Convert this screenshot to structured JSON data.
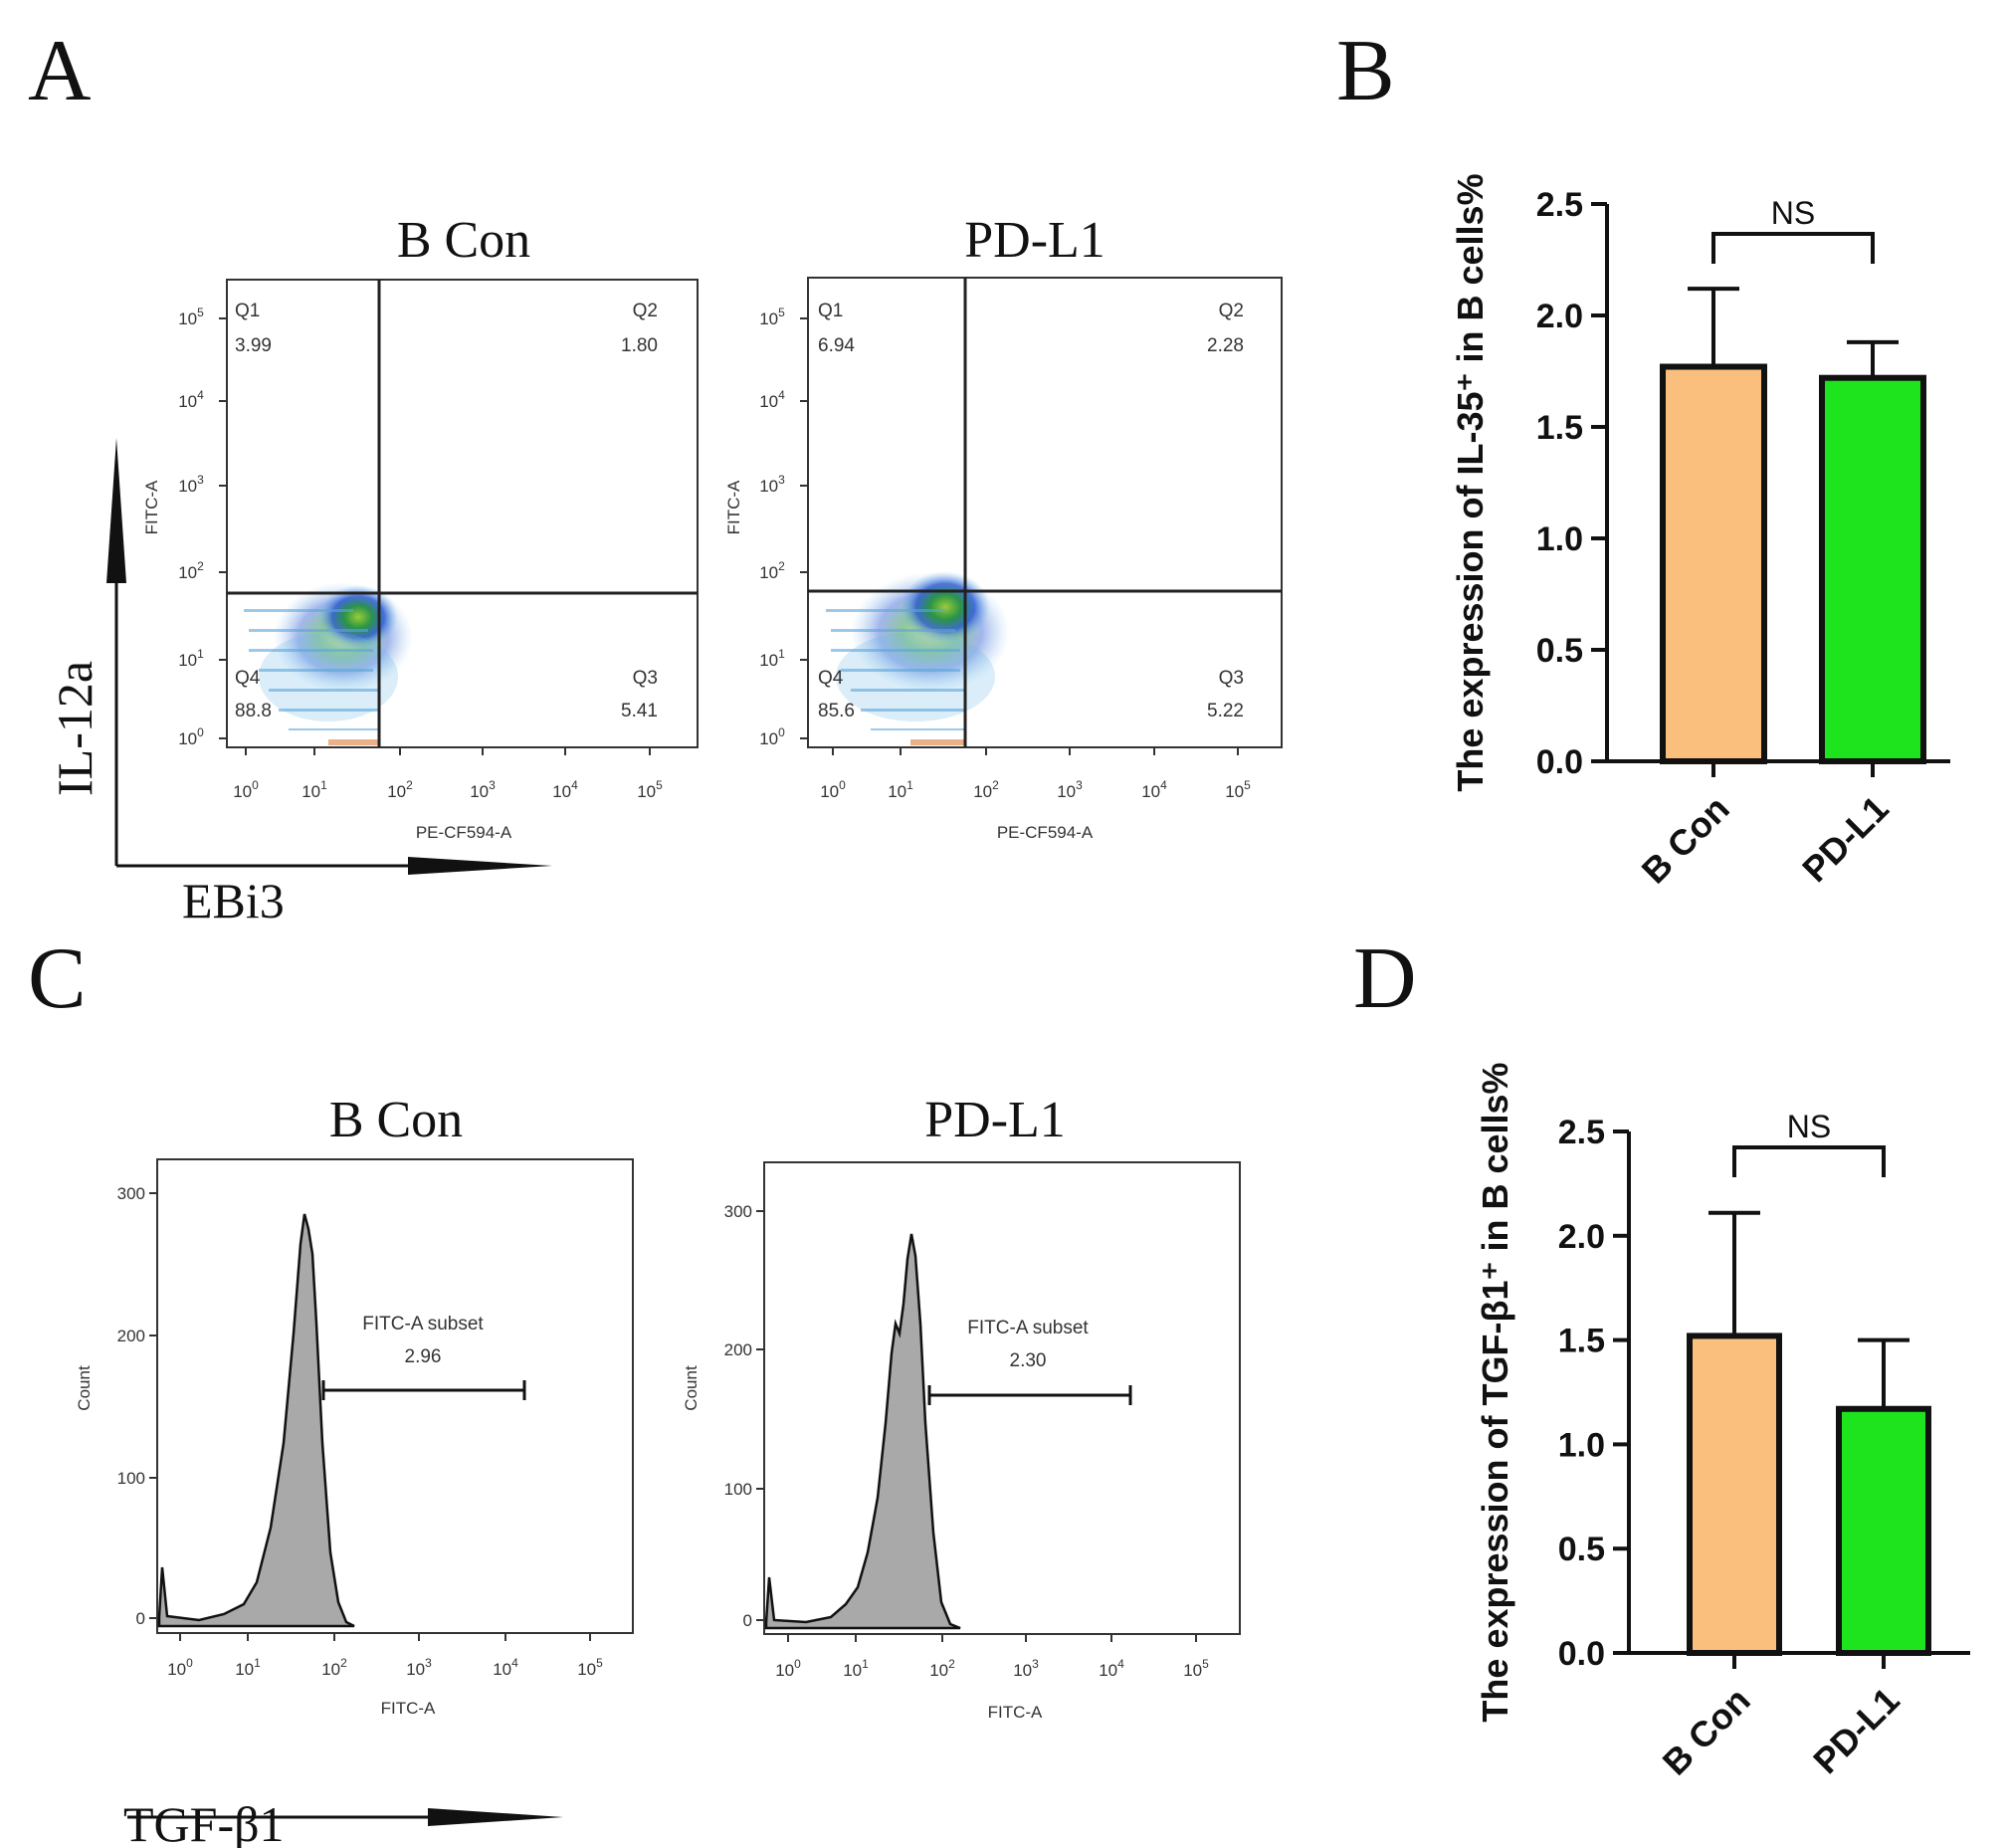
{
  "panels": {
    "A": {
      "letter": "A",
      "y_marker": "IL-12a",
      "x_marker": "EBi3",
      "plots": [
        {
          "title": "B Con",
          "x_axis_label": "PE-CF594-A",
          "y_axis_label": "FITC-A",
          "quadrants": [
            {
              "name": "Q1",
              "value": "3.99"
            },
            {
              "name": "Q2",
              "value": "1.80"
            },
            {
              "name": "Q3",
              "value": "5.41"
            },
            {
              "name": "Q4",
              "value": "88.8"
            }
          ]
        },
        {
          "title": "PD-L1",
          "x_axis_label": "PE-CF594-A",
          "y_axis_label": "FITC-A",
          "quadrants": [
            {
              "name": "Q1",
              "value": "6.94"
            },
            {
              "name": "Q2",
              "value": "2.28"
            },
            {
              "name": "Q3",
              "value": "5.22"
            },
            {
              "name": "Q4",
              "value": "85.6"
            }
          ]
        }
      ],
      "decade_ticks": [
        "0",
        "1",
        "2",
        "3",
        "4",
        "5"
      ],
      "tick_base": "10"
    },
    "B": {
      "letter": "B",
      "significance": "NS"
    },
    "C": {
      "letter": "C",
      "x_marker": "TGF-β1",
      "plots": [
        {
          "title": "B Con",
          "x_axis_label": "FITC-A",
          "y_axis_label": "Count",
          "gate_label": "FITC-A subset",
          "gate_value": "2.96",
          "y_ticks": [
            "0",
            "100",
            "200",
            "300"
          ]
        },
        {
          "title": "PD-L1",
          "x_axis_label": "FITC-A",
          "y_axis_label": "Count",
          "gate_label": "FITC-A subset",
          "gate_value": "2.30",
          "y_ticks": [
            "0",
            "100",
            "200",
            "300"
          ]
        }
      ]
    },
    "D": {
      "letter": "D",
      "significance": "NS"
    }
  },
  "colors": {
    "b_con": "#fbbf7d",
    "pd_l1": "#1ee41e",
    "axis": "#111111",
    "histogram_fill": "#a9a9a9"
  },
  "chart_data": [
    {
      "type": "bar",
      "panel": "B",
      "categories": [
        "B Con",
        "PD-L1"
      ],
      "values": [
        1.77,
        1.72
      ],
      "error": [
        0.35,
        0.16
      ],
      "ylabel": "The expression of IL-35⁺ in B cells%",
      "ylim": [
        0,
        2.5
      ],
      "yticks": [
        "0.0",
        "0.5",
        "1.0",
        "1.5",
        "2.0",
        "2.5"
      ],
      "grid": false
    },
    {
      "type": "bar",
      "panel": "D",
      "categories": [
        "B Con",
        "PD-L1"
      ],
      "values": [
        1.52,
        1.17
      ],
      "error": [
        0.59,
        0.33
      ],
      "ylabel": "The expression of TGF-β1⁺ in B cells%",
      "ylim": [
        0,
        2.5
      ],
      "yticks": [
        "0.0",
        "0.5",
        "1.0",
        "1.5",
        "2.0",
        "2.5"
      ],
      "grid": false
    }
  ]
}
